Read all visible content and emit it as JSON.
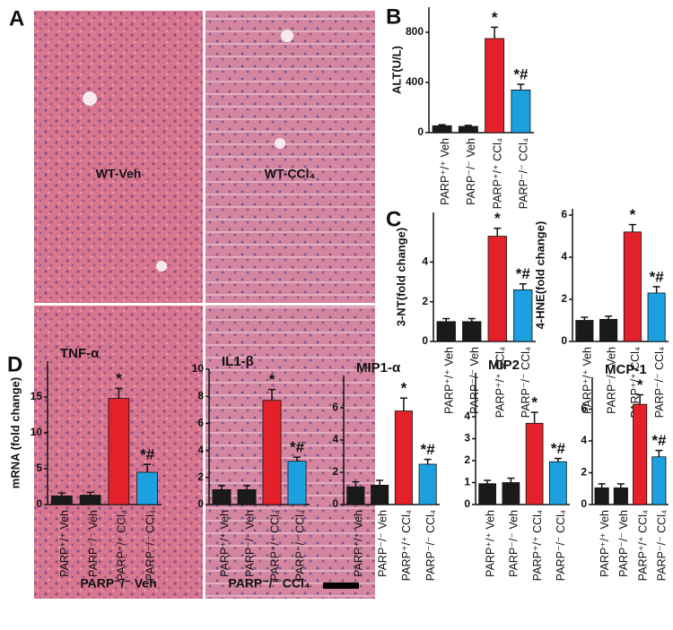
{
  "histology": {
    "panel_label": "A",
    "labels": [
      "WT-Veh",
      "WT-CCl₄",
      "PARP⁻/⁻ Veh",
      "PARP⁻/⁻ CCl₄"
    ]
  },
  "chart_data": [
    {
      "type": "bar",
      "panel_label": "B",
      "ylabel": "ALT(U/L)",
      "categories": [
        "PARP⁺/⁺ Veh",
        "PARP⁻/⁻ Veh",
        "PARP⁺/⁺ CCl₄",
        "PARP⁻/⁻ CCl₄"
      ],
      "values": [
        55,
        50,
        750,
        340
      ],
      "errors": [
        8,
        8,
        90,
        45
      ],
      "colors": [
        "#1a1a1a",
        "#1a1a1a",
        "#e4202a",
        "#1ca0e0"
      ],
      "annotations": [
        null,
        null,
        "*",
        "*#"
      ],
      "ylim": [
        0,
        1000
      ],
      "yticks": [
        0,
        400,
        800
      ]
    },
    {
      "type": "bar",
      "panel_label": "C",
      "ylabel": "3-NT(fold change)",
      "categories": [
        "PARP⁺/⁺ Veh",
        "PARP⁻/⁻ Veh",
        "PARP⁺/⁺ CCl₄",
        "PARP⁻/⁻ CCl₄"
      ],
      "values": [
        1.0,
        1.0,
        5.3,
        2.6
      ],
      "errors": [
        0.15,
        0.15,
        0.4,
        0.3
      ],
      "colors": [
        "#1a1a1a",
        "#1a1a1a",
        "#e4202a",
        "#1ca0e0"
      ],
      "annotations": [
        null,
        null,
        "*",
        "*#"
      ],
      "ylim": [
        0,
        6.5
      ],
      "yticks": [
        0,
        2,
        4
      ]
    },
    {
      "type": "bar",
      "ylabel": "4-HNE(fold change)",
      "categories": [
        "PARP⁺/⁺ Veh",
        "PARP⁻/⁻ Veh",
        "PARP⁺/⁺ CCl₄",
        "PARP⁻/⁻ CCl₄"
      ],
      "values": [
        1.0,
        1.05,
        5.2,
        2.3
      ],
      "errors": [
        0.15,
        0.15,
        0.35,
        0.3
      ],
      "colors": [
        "#1a1a1a",
        "#1a1a1a",
        "#e4202a",
        "#1ca0e0"
      ],
      "annotations": [
        null,
        null,
        "*",
        "*#"
      ],
      "ylim": [
        0,
        6.3
      ],
      "yticks": [
        0,
        2,
        4,
        6
      ]
    },
    {
      "type": "bar",
      "panel_label": "D",
      "title": "TNF-α",
      "ylabel": "mRNA (fold change)",
      "categories": [
        "PARP⁺/⁺ Veh",
        "PARP⁻/⁻ Veh",
        "PARP⁺/⁺ CCl₄",
        "PARP⁻/⁻ CCl₄"
      ],
      "values": [
        1.2,
        1.3,
        14.8,
        4.5
      ],
      "errors": [
        0.4,
        0.4,
        1.4,
        1.1
      ],
      "colors": [
        "#1a1a1a",
        "#1a1a1a",
        "#e4202a",
        "#1ca0e0"
      ],
      "annotations": [
        null,
        null,
        "*",
        "*#"
      ],
      "ylim": [
        0,
        20
      ],
      "yticks": [
        0,
        5,
        10,
        15
      ]
    },
    {
      "type": "bar",
      "title": "IL1-β",
      "categories": [
        "PARP⁺/⁺ Veh",
        "PARP⁻/⁻ Veh",
        "PARP⁺/⁺ CCl₄",
        "PARP⁻/⁻ CCl₄"
      ],
      "values": [
        1.1,
        1.1,
        7.7,
        3.2
      ],
      "errors": [
        0.3,
        0.3,
        0.8,
        0.3
      ],
      "colors": [
        "#1a1a1a",
        "#1a1a1a",
        "#e4202a",
        "#1ca0e0"
      ],
      "annotations": [
        null,
        null,
        "*",
        "*#"
      ],
      "ylim": [
        0,
        10
      ],
      "yticks": [
        0,
        2,
        4,
        6,
        8,
        10
      ]
    },
    {
      "type": "bar",
      "title": "MIP1-α",
      "categories": [
        "PARP⁺/⁺ Veh",
        "PARP⁻/⁻ Veh",
        "PARP⁺/⁺ CCl₄",
        "PARP⁻/⁻ CCl₄"
      ],
      "values": [
        1.1,
        1.2,
        5.8,
        2.5
      ],
      "errors": [
        0.3,
        0.3,
        0.8,
        0.3
      ],
      "colors": [
        "#1a1a1a",
        "#1a1a1a",
        "#e4202a",
        "#1ca0e0"
      ],
      "annotations": [
        null,
        null,
        "*",
        "*#"
      ],
      "ylim": [
        0,
        8
      ],
      "yticks": [
        0,
        2,
        4,
        6
      ]
    },
    {
      "type": "bar",
      "title": "MIP2",
      "categories": [
        "PARP⁺/⁺ Veh",
        "PARP⁻/⁻ Veh",
        "PARP⁺/⁺ CCl₄",
        "PARP⁻/⁻ CCl₄"
      ],
      "values": [
        0.95,
        1.0,
        3.7,
        1.95
      ],
      "errors": [
        0.15,
        0.2,
        0.5,
        0.15
      ],
      "colors": [
        "#1a1a1a",
        "#1a1a1a",
        "#e4202a",
        "#1ca0e0"
      ],
      "annotations": [
        null,
        null,
        "*",
        "*#"
      ],
      "ylim": [
        0,
        6
      ],
      "yticks": [
        0,
        1,
        2,
        3,
        4
      ]
    },
    {
      "type": "bar",
      "title": "MCP-1",
      "categories": [
        "PARP⁺/⁺ Veh",
        "PARP⁻/⁻ Veh",
        "PARP⁺/⁺ CCl₄",
        "PARP⁻/⁻ CCl₄"
      ],
      "values": [
        1.05,
        1.05,
        6.3,
        3.0
      ],
      "errors": [
        0.25,
        0.25,
        0.6,
        0.4
      ],
      "colors": [
        "#1a1a1a",
        "#1a1a1a",
        "#e4202a",
        "#1ca0e0"
      ],
      "annotations": [
        null,
        null,
        "*",
        "*#"
      ],
      "ylim": [
        0,
        8
      ],
      "yticks": [
        0,
        2,
        4,
        6
      ]
    }
  ]
}
